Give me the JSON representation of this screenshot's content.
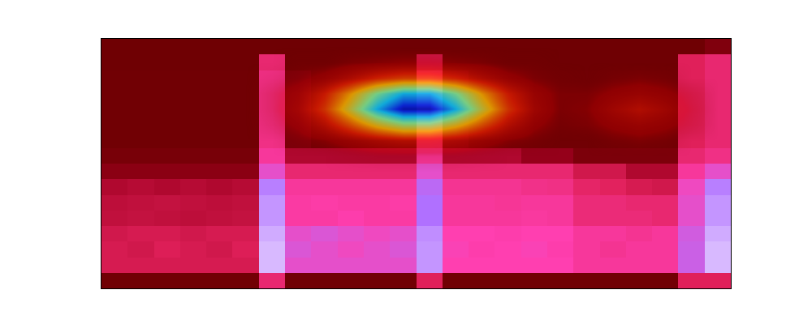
{
  "chart_data": {
    "type": "heatmap",
    "tick_labels": false,
    "xlim": [
      -0.5,
      23.5
    ],
    "ylim": [
      -0.5,
      15.5
    ],
    "zlim": [
      0,
      1
    ],
    "cells": [
      [
        0.03,
        0.03,
        0.03,
        0.03,
        0.03,
        0.03,
        0.5,
        0.03,
        0.03,
        0.03,
        0.03,
        0.03,
        0.45,
        0.03,
        0.03,
        0.03,
        0.03,
        0.03,
        0.03,
        0.03,
        0.03,
        0.03,
        0.45,
        0.45
      ],
      [
        0.42,
        0.42,
        0.42,
        0.42,
        0.42,
        0.42,
        0.9,
        0.7,
        0.7,
        0.7,
        0.7,
        0.7,
        0.85,
        0.65,
        0.65,
        0.65,
        0.65,
        0.65,
        0.6,
        0.6,
        0.6,
        0.6,
        0.75,
        0.9
      ],
      [
        0.42,
        0.4,
        0.44,
        0.42,
        0.4,
        0.44,
        0.9,
        0.72,
        0.7,
        0.68,
        0.7,
        0.72,
        0.85,
        0.66,
        0.64,
        0.65,
        0.66,
        0.64,
        0.6,
        0.58,
        0.6,
        0.6,
        0.75,
        0.9
      ],
      [
        0.4,
        0.42,
        0.42,
        0.4,
        0.42,
        0.42,
        0.88,
        0.7,
        0.72,
        0.7,
        0.68,
        0.7,
        0.84,
        0.65,
        0.65,
        0.64,
        0.65,
        0.65,
        0.6,
        0.6,
        0.58,
        0.6,
        0.74,
        0.88
      ],
      [
        0.35,
        0.36,
        0.35,
        0.34,
        0.35,
        0.36,
        0.85,
        0.62,
        0.62,
        0.64,
        0.62,
        0.62,
        0.8,
        0.6,
        0.6,
        0.6,
        0.61,
        0.6,
        0.52,
        0.52,
        0.52,
        0.5,
        0.7,
        0.85
      ],
      [
        0.34,
        0.35,
        0.36,
        0.35,
        0.34,
        0.35,
        0.85,
        0.62,
        0.63,
        0.62,
        0.62,
        0.63,
        0.8,
        0.6,
        0.6,
        0.59,
        0.6,
        0.6,
        0.52,
        0.52,
        0.5,
        0.5,
        0.7,
        0.85
      ],
      [
        0.3,
        0.32,
        0.3,
        0.32,
        0.3,
        0.32,
        0.82,
        0.6,
        0.6,
        0.6,
        0.6,
        0.6,
        0.78,
        0.58,
        0.58,
        0.58,
        0.56,
        0.55,
        0.48,
        0.46,
        0.42,
        0.4,
        0.68,
        0.82
      ],
      [
        0.15,
        0.15,
        0.15,
        0.15,
        0.15,
        0.15,
        0.7,
        0.5,
        0.5,
        0.5,
        0.5,
        0.5,
        0.7,
        0.5,
        0.5,
        0.5,
        0.5,
        0.5,
        0.4,
        0.4,
        0.3,
        0.3,
        0.6,
        0.7
      ],
      [
        0.06,
        0.06,
        0.06,
        0.06,
        0.06,
        0.06,
        0.6,
        0.3,
        0.3,
        0.3,
        0.3,
        0.3,
        0.6,
        0.3,
        0.3,
        0.3,
        0.2,
        0.2,
        0.08,
        0.08,
        0.08,
        0.08,
        0.5,
        0.55
      ],
      [
        0.03,
        0.03,
        0.03,
        0.03,
        0.03,
        0.03,
        0.55,
        0.08,
        0.03,
        0.03,
        0.03,
        0.03,
        0.5,
        0.08,
        0.03,
        0.03,
        0.03,
        0.03,
        0.03,
        0.03,
        0.03,
        0.03,
        0.45,
        0.5
      ],
      [
        0.03,
        0.03,
        0.03,
        0.03,
        0.03,
        0.03,
        0.55,
        0.08,
        0.03,
        0.03,
        0.03,
        0.03,
        0.5,
        0.08,
        0.03,
        0.03,
        0.03,
        0.03,
        0.03,
        0.03,
        0.03,
        0.03,
        0.45,
        0.5
      ],
      [
        0.03,
        0.03,
        0.03,
        0.03,
        0.03,
        0.03,
        0.55,
        0.08,
        0.03,
        0.03,
        0.03,
        0.03,
        0.5,
        0.08,
        0.03,
        0.03,
        0.03,
        0.03,
        0.03,
        0.03,
        0.03,
        0.03,
        0.45,
        0.5
      ],
      [
        0.03,
        0.03,
        0.03,
        0.03,
        0.03,
        0.03,
        0.55,
        0.08,
        0.03,
        0.03,
        0.03,
        0.03,
        0.5,
        0.08,
        0.03,
        0.03,
        0.03,
        0.03,
        0.03,
        0.03,
        0.03,
        0.03,
        0.45,
        0.5
      ],
      [
        0.03,
        0.03,
        0.03,
        0.03,
        0.03,
        0.03,
        0.55,
        0.08,
        0.03,
        0.03,
        0.03,
        0.03,
        0.5,
        0.08,
        0.03,
        0.03,
        0.03,
        0.03,
        0.03,
        0.03,
        0.03,
        0.03,
        0.45,
        0.5
      ],
      [
        0.02,
        0.02,
        0.02,
        0.02,
        0.02,
        0.02,
        0.5,
        0.02,
        0.02,
        0.02,
        0.02,
        0.02,
        0.4,
        0.02,
        0.02,
        0.02,
        0.02,
        0.02,
        0.02,
        0.02,
        0.02,
        0.02,
        0.45,
        0.5
      ],
      [
        0.02,
        0.02,
        0.02,
        0.02,
        0.02,
        0.02,
        0.02,
        0.02,
        0.02,
        0.02,
        0.02,
        0.02,
        0.02,
        0.02,
        0.02,
        0.02,
        0.02,
        0.02,
        0.02,
        0.02,
        0.02,
        0.02,
        0.02,
        0.1
      ]
    ],
    "overlay_zlim": [
      0,
      1
    ],
    "overlay_cells": [
      [
        0,
        0,
        0,
        0,
        0,
        0,
        0,
        0,
        0,
        0,
        0,
        0,
        0,
        0,
        0,
        0,
        0,
        0,
        0,
        0,
        0,
        0,
        0,
        0
      ],
      [
        0,
        0,
        0,
        0,
        0,
        0,
        0,
        0,
        0,
        0,
        0,
        0,
        0,
        0,
        0,
        0,
        0,
        0,
        0,
        0,
        0,
        0,
        0,
        0
      ],
      [
        0,
        0,
        0,
        0,
        0,
        0,
        0,
        0,
        0,
        0,
        0,
        0,
        0,
        0,
        0,
        0,
        0,
        0,
        0,
        0,
        0,
        0,
        0,
        0
      ],
      [
        0,
        0,
        0,
        0,
        0,
        0,
        0,
        0,
        0,
        0,
        0,
        0,
        0,
        0,
        0,
        0,
        0,
        0,
        0,
        0,
        0,
        0,
        0,
        0
      ],
      [
        0,
        0,
        0,
        0,
        0,
        0,
        0,
        0,
        0,
        0,
        0,
        0,
        0,
        0,
        0,
        0,
        0,
        0,
        0,
        0,
        0,
        0,
        0,
        0
      ],
      [
        0,
        0,
        0,
        0,
        0,
        0,
        0,
        0,
        0,
        0,
        0,
        0,
        0,
        0,
        0,
        0,
        0,
        0,
        0,
        0,
        0,
        0,
        0,
        0
      ],
      [
        0,
        0,
        0,
        0,
        0,
        0,
        0,
        0,
        0,
        0,
        0,
        0,
        0,
        0,
        0,
        0,
        0,
        0,
        0,
        0,
        0,
        0,
        0,
        0
      ],
      [
        0,
        0,
        0,
        0,
        0,
        0,
        0,
        0,
        0,
        0,
        0,
        0,
        0,
        0,
        0,
        0,
        0,
        0,
        0,
        0,
        0,
        0,
        0,
        0
      ],
      [
        0,
        0,
        0,
        0,
        0,
        0,
        0,
        0,
        0,
        0.01,
        0.02,
        0.02,
        0.02,
        0.02,
        0.01,
        0,
        0,
        0,
        0,
        0,
        0,
        0,
        0,
        0
      ],
      [
        0,
        0,
        0,
        0,
        0,
        0,
        0,
        0.02,
        0.04,
        0.08,
        0.12,
        0.15,
        0.15,
        0.12,
        0.08,
        0.04,
        0.02,
        0,
        0,
        0.02,
        0.03,
        0.02,
        0,
        0
      ],
      [
        0,
        0,
        0,
        0,
        0,
        0,
        0.02,
        0.06,
        0.15,
        0.29,
        0.44,
        0.55,
        0.55,
        0.44,
        0.29,
        0.15,
        0.06,
        0.02,
        0.03,
        0.06,
        0.08,
        0.06,
        0.03,
        0
      ],
      [
        0,
        0,
        0,
        0,
        0,
        0,
        0.03,
        0.1,
        0.25,
        0.49,
        0.76,
        0.95,
        0.95,
        0.76,
        0.49,
        0.25,
        0.1,
        0.03,
        0.04,
        0.1,
        0.15,
        0.1,
        0.04,
        0
      ],
      [
        0,
        0,
        0,
        0,
        0,
        0,
        0.03,
        0.08,
        0.2,
        0.39,
        0.61,
        0.76,
        0.76,
        0.61,
        0.39,
        0.2,
        0.08,
        0.03,
        0.03,
        0.06,
        0.08,
        0.06,
        0.03,
        0
      ],
      [
        0,
        0,
        0,
        0,
        0,
        0,
        0.01,
        0.03,
        0.07,
        0.14,
        0.22,
        0.27,
        0.27,
        0.22,
        0.14,
        0.07,
        0.03,
        0.01,
        0,
        0.02,
        0.03,
        0.02,
        0,
        0
      ],
      [
        0,
        0,
        0,
        0,
        0,
        0,
        0,
        0.01,
        0.01,
        0.03,
        0.04,
        0.05,
        0.05,
        0.04,
        0.03,
        0.01,
        0.01,
        0,
        0,
        0,
        0,
        0,
        0,
        0
      ],
      [
        0,
        0,
        0,
        0,
        0,
        0,
        0,
        0,
        0,
        0,
        0,
        0,
        0,
        0,
        0,
        0,
        0,
        0,
        0,
        0,
        0,
        0,
        0,
        0
      ]
    ]
  }
}
